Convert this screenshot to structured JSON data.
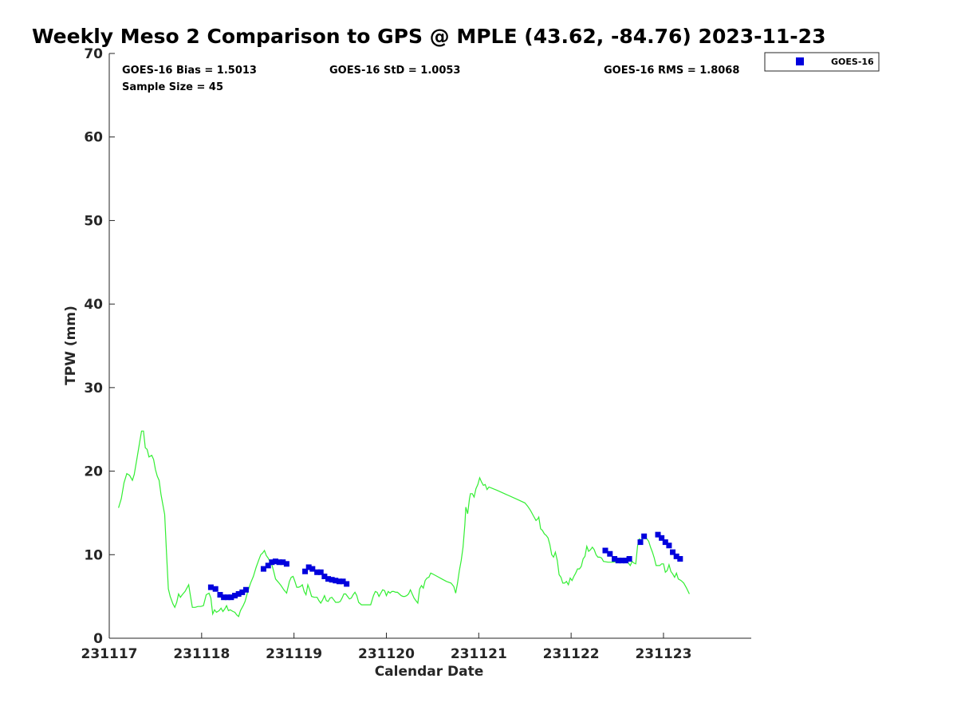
{
  "chart_data": {
    "type": "scatter",
    "title": "Weekly Meso 2 Comparison to GPS @ MPLE (43.62, -84.76) 2023-11-23",
    "xlabel": "Calendar Date",
    "ylabel": "TPW (mm)",
    "xlim": [
      0,
      6.95
    ],
    "ylim": [
      0,
      70
    ],
    "x_tick_values": [
      0,
      1,
      2,
      3,
      4,
      5,
      6
    ],
    "x_tick_labels": [
      "231117",
      "231118",
      "231119",
      "231120",
      "231121",
      "231122",
      "231123"
    ],
    "y_ticks": [
      0,
      10,
      20,
      30,
      40,
      50,
      60,
      70
    ],
    "x_units": "days since 231117 00Z",
    "grid": false,
    "legend_position": "top-right-outside",
    "stats": {
      "bias": "GOES-16 Bias = 1.5013",
      "std": "GOES-16 StD = 1.0053",
      "rms": "GOES-16 RMS = 1.8068",
      "sample": "Sample Size = 45"
    },
    "legend": [
      {
        "label": "GOES-16",
        "color": "#0000dd",
        "marker": "square"
      }
    ],
    "series": [
      {
        "name": "GPS",
        "kind": "line",
        "color": "#33ee33",
        "points": [
          [
            0.1,
            15.6
          ],
          [
            0.13,
            16.7
          ],
          [
            0.16,
            18.6
          ],
          [
            0.19,
            19.7
          ],
          [
            0.22,
            19.5
          ],
          [
            0.25,
            18.9
          ],
          [
            0.27,
            19.6
          ],
          [
            0.3,
            21.5
          ],
          [
            0.33,
            23.5
          ],
          [
            0.35,
            24.8
          ],
          [
            0.37,
            24.8
          ],
          [
            0.39,
            22.8
          ],
          [
            0.41,
            22.6
          ],
          [
            0.43,
            21.7
          ],
          [
            0.46,
            21.9
          ],
          [
            0.48,
            21.4
          ],
          [
            0.5,
            20.2
          ],
          [
            0.52,
            19.4
          ],
          [
            0.54,
            18.9
          ],
          [
            0.56,
            17.2
          ],
          [
            0.58,
            16.0
          ],
          [
            0.6,
            14.8
          ],
          [
            0.62,
            10.2
          ],
          [
            0.64,
            5.9
          ],
          [
            0.66,
            5.0
          ],
          [
            0.69,
            4.1
          ],
          [
            0.71,
            3.7
          ],
          [
            0.73,
            4.3
          ],
          [
            0.75,
            5.3
          ],
          [
            0.77,
            4.9
          ],
          [
            0.79,
            5.2
          ],
          [
            0.82,
            5.6
          ],
          [
            0.84,
            6.0
          ],
          [
            0.86,
            6.4
          ],
          [
            0.88,
            5.0
          ],
          [
            0.9,
            3.7
          ],
          [
            0.93,
            3.7
          ],
          [
            0.96,
            3.8
          ],
          [
            0.99,
            3.8
          ],
          [
            1.02,
            3.9
          ],
          [
            1.05,
            5.2
          ],
          [
            1.08,
            5.4
          ],
          [
            1.1,
            4.8
          ],
          [
            1.12,
            2.9
          ],
          [
            1.14,
            3.4
          ],
          [
            1.16,
            3.1
          ],
          [
            1.19,
            3.3
          ],
          [
            1.21,
            3.6
          ],
          [
            1.23,
            3.2
          ],
          [
            1.25,
            3.5
          ],
          [
            1.27,
            3.9
          ],
          [
            1.29,
            3.3
          ],
          [
            1.31,
            3.4
          ],
          [
            1.34,
            3.2
          ],
          [
            1.36,
            3.1
          ],
          [
            1.38,
            2.8
          ],
          [
            1.4,
            2.6
          ],
          [
            1.42,
            3.3
          ],
          [
            1.45,
            3.9
          ],
          [
            1.47,
            4.4
          ],
          [
            1.5,
            5.6
          ],
          [
            1.53,
            6.6
          ],
          [
            1.56,
            7.4
          ],
          [
            1.59,
            8.5
          ],
          [
            1.62,
            9.4
          ],
          [
            1.64,
            10.0
          ],
          [
            1.66,
            10.2
          ],
          [
            1.68,
            10.5
          ],
          [
            1.7,
            9.9
          ],
          [
            1.72,
            9.6
          ],
          [
            1.74,
            9.2
          ],
          [
            1.76,
            8.8
          ],
          [
            1.78,
            8.0
          ],
          [
            1.8,
            7.1
          ],
          [
            1.83,
            6.7
          ],
          [
            1.86,
            6.3
          ],
          [
            1.89,
            5.8
          ],
          [
            1.92,
            5.4
          ],
          [
            1.95,
            6.8
          ],
          [
            1.97,
            7.3
          ],
          [
            1.99,
            7.4
          ],
          [
            2.01,
            6.8
          ],
          [
            2.03,
            6.1
          ],
          [
            2.05,
            6.1
          ],
          [
            2.07,
            6.2
          ],
          [
            2.09,
            6.4
          ],
          [
            2.11,
            5.6
          ],
          [
            2.13,
            5.2
          ],
          [
            2.15,
            6.4
          ],
          [
            2.17,
            5.8
          ],
          [
            2.19,
            5.0
          ],
          [
            2.22,
            4.9
          ],
          [
            2.25,
            4.9
          ],
          [
            2.27,
            4.5
          ],
          [
            2.29,
            4.2
          ],
          [
            2.31,
            4.6
          ],
          [
            2.33,
            5.1
          ],
          [
            2.35,
            4.5
          ],
          [
            2.37,
            4.4
          ],
          [
            2.39,
            4.8
          ],
          [
            2.41,
            4.9
          ],
          [
            2.43,
            4.6
          ],
          [
            2.45,
            4.3
          ],
          [
            2.48,
            4.3
          ],
          [
            2.5,
            4.4
          ],
          [
            2.52,
            4.8
          ],
          [
            2.54,
            5.3
          ],
          [
            2.56,
            5.3
          ],
          [
            2.58,
            5.0
          ],
          [
            2.6,
            4.7
          ],
          [
            2.62,
            4.8
          ],
          [
            2.64,
            5.2
          ],
          [
            2.66,
            5.5
          ],
          [
            2.68,
            5.1
          ],
          [
            2.7,
            4.3
          ],
          [
            2.73,
            4.0
          ],
          [
            2.78,
            4.0
          ],
          [
            2.83,
            4.0
          ],
          [
            2.86,
            5.1
          ],
          [
            2.88,
            5.6
          ],
          [
            2.9,
            5.5
          ],
          [
            2.92,
            5.0
          ],
          [
            2.94,
            5.4
          ],
          [
            2.96,
            5.8
          ],
          [
            2.98,
            5.7
          ],
          [
            3.0,
            5.1
          ],
          [
            3.02,
            5.6
          ],
          [
            3.04,
            5.4
          ],
          [
            3.06,
            5.6
          ],
          [
            3.08,
            5.6
          ],
          [
            3.1,
            5.5
          ],
          [
            3.12,
            5.5
          ],
          [
            3.14,
            5.3
          ],
          [
            3.16,
            5.1
          ],
          [
            3.18,
            5.0
          ],
          [
            3.2,
            5.0
          ],
          [
            3.22,
            5.1
          ],
          [
            3.24,
            5.3
          ],
          [
            3.26,
            5.8
          ],
          [
            3.28,
            5.3
          ],
          [
            3.3,
            4.8
          ],
          [
            3.32,
            4.5
          ],
          [
            3.34,
            4.2
          ],
          [
            3.36,
            5.9
          ],
          [
            3.38,
            6.3
          ],
          [
            3.4,
            6.0
          ],
          [
            3.42,
            6.9
          ],
          [
            3.44,
            7.2
          ],
          [
            3.46,
            7.3
          ],
          [
            3.48,
            7.8
          ],
          [
            3.5,
            7.7
          ],
          [
            3.55,
            7.4
          ],
          [
            3.6,
            7.1
          ],
          [
            3.65,
            6.8
          ],
          [
            3.7,
            6.6
          ],
          [
            3.73,
            6.2
          ],
          [
            3.75,
            5.4
          ],
          [
            3.77,
            6.6
          ],
          [
            3.79,
            8.1
          ],
          [
            3.81,
            9.3
          ],
          [
            3.83,
            10.9
          ],
          [
            3.85,
            13.6
          ],
          [
            3.86,
            15.7
          ],
          [
            3.88,
            14.9
          ],
          [
            3.9,
            16.7
          ],
          [
            3.91,
            17.3
          ],
          [
            3.93,
            17.3
          ],
          [
            3.95,
            16.9
          ],
          [
            3.97,
            17.9
          ],
          [
            3.99,
            18.4
          ],
          [
            4.01,
            19.2
          ],
          [
            4.03,
            18.7
          ],
          [
            4.05,
            18.3
          ],
          [
            4.07,
            18.4
          ],
          [
            4.09,
            17.8
          ],
          [
            4.11,
            18.1
          ],
          [
            4.2,
            17.7
          ],
          [
            4.3,
            17.2
          ],
          [
            4.4,
            16.7
          ],
          [
            4.5,
            16.2
          ],
          [
            4.53,
            15.8
          ],
          [
            4.56,
            15.3
          ],
          [
            4.59,
            14.7
          ],
          [
            4.62,
            14.1
          ],
          [
            4.64,
            14.3
          ],
          [
            4.65,
            14.5
          ],
          [
            4.67,
            13.1
          ],
          [
            4.69,
            12.9
          ],
          [
            4.71,
            12.5
          ],
          [
            4.73,
            12.3
          ],
          [
            4.75,
            12.0
          ],
          [
            4.77,
            11.2
          ],
          [
            4.79,
            10.0
          ],
          [
            4.81,
            9.7
          ],
          [
            4.83,
            10.3
          ],
          [
            4.85,
            9.3
          ],
          [
            4.87,
            7.6
          ],
          [
            4.89,
            7.3
          ],
          [
            4.91,
            6.6
          ],
          [
            4.93,
            6.6
          ],
          [
            4.95,
            6.8
          ],
          [
            4.97,
            6.4
          ],
          [
            4.99,
            7.2
          ],
          [
            5.01,
            6.9
          ],
          [
            5.03,
            7.4
          ],
          [
            5.05,
            7.8
          ],
          [
            5.07,
            8.3
          ],
          [
            5.09,
            8.3
          ],
          [
            5.11,
            8.6
          ],
          [
            5.13,
            9.5
          ],
          [
            5.15,
            9.8
          ],
          [
            5.17,
            11.0
          ],
          [
            5.19,
            10.4
          ],
          [
            5.21,
            10.6
          ],
          [
            5.23,
            10.9
          ],
          [
            5.25,
            10.6
          ],
          [
            5.27,
            10.0
          ],
          [
            5.29,
            9.7
          ],
          [
            5.31,
            9.7
          ],
          [
            5.33,
            9.6
          ],
          [
            5.35,
            9.2
          ],
          [
            5.4,
            9.1
          ],
          [
            5.45,
            9.1
          ],
          [
            5.5,
            9.2
          ],
          [
            5.52,
            9.5
          ],
          [
            5.54,
            9.6
          ],
          [
            5.56,
            9.1
          ],
          [
            5.58,
            9.3
          ],
          [
            5.6,
            9.6
          ],
          [
            5.62,
            9.0
          ],
          [
            5.64,
            8.7
          ],
          [
            5.66,
            9.2
          ],
          [
            5.68,
            9.0
          ],
          [
            5.7,
            8.9
          ],
          [
            5.72,
            11.1
          ],
          [
            5.74,
            11.9
          ],
          [
            5.76,
            11.7
          ],
          [
            5.78,
            12.1
          ],
          [
            5.8,
            12.2
          ],
          [
            5.82,
            11.9
          ],
          [
            5.84,
            11.6
          ],
          [
            5.86,
            10.9
          ],
          [
            5.88,
            10.3
          ],
          [
            5.9,
            9.6
          ],
          [
            5.92,
            8.7
          ],
          [
            5.94,
            8.7
          ],
          [
            5.96,
            8.7
          ],
          [
            5.98,
            8.9
          ],
          [
            6.0,
            8.9
          ],
          [
            6.02,
            7.9
          ],
          [
            6.04,
            8.1
          ],
          [
            6.06,
            8.8
          ],
          [
            6.08,
            8.0
          ],
          [
            6.1,
            7.7
          ],
          [
            6.12,
            7.3
          ],
          [
            6.14,
            7.8
          ],
          [
            6.16,
            7.1
          ],
          [
            6.19,
            6.9
          ],
          [
            6.22,
            6.6
          ],
          [
            6.25,
            6.0
          ],
          [
            6.28,
            5.3
          ]
        ]
      },
      {
        "name": "GOES-16",
        "kind": "scatter",
        "color": "#0000dd",
        "points": [
          [
            1.1,
            6.1
          ],
          [
            1.15,
            5.9
          ],
          [
            1.2,
            5.2
          ],
          [
            1.24,
            4.9
          ],
          [
            1.28,
            4.9
          ],
          [
            1.32,
            4.9
          ],
          [
            1.36,
            5.1
          ],
          [
            1.4,
            5.3
          ],
          [
            1.44,
            5.5
          ],
          [
            1.48,
            5.8
          ],
          [
            1.67,
            8.3
          ],
          [
            1.72,
            8.7
          ],
          [
            1.76,
            9.1
          ],
          [
            1.8,
            9.2
          ],
          [
            1.84,
            9.1
          ],
          [
            1.88,
            9.1
          ],
          [
            1.92,
            8.9
          ],
          [
            2.12,
            8.0
          ],
          [
            2.16,
            8.5
          ],
          [
            2.2,
            8.3
          ],
          [
            2.25,
            7.9
          ],
          [
            2.29,
            7.9
          ],
          [
            2.33,
            7.4
          ],
          [
            2.37,
            7.1
          ],
          [
            2.41,
            7.0
          ],
          [
            2.45,
            6.9
          ],
          [
            2.49,
            6.8
          ],
          [
            2.53,
            6.8
          ],
          [
            2.57,
            6.5
          ],
          [
            5.37,
            10.5
          ],
          [
            5.42,
            10.1
          ],
          [
            5.47,
            9.5
          ],
          [
            5.51,
            9.3
          ],
          [
            5.55,
            9.3
          ],
          [
            5.59,
            9.3
          ],
          [
            5.63,
            9.5
          ],
          [
            5.75,
            11.5
          ],
          [
            5.79,
            12.2
          ],
          [
            5.94,
            12.4
          ],
          [
            5.98,
            12.0
          ],
          [
            6.02,
            11.5
          ],
          [
            6.06,
            11.1
          ],
          [
            6.1,
            10.3
          ],
          [
            6.14,
            9.8
          ],
          [
            6.18,
            9.5
          ]
        ]
      }
    ]
  }
}
